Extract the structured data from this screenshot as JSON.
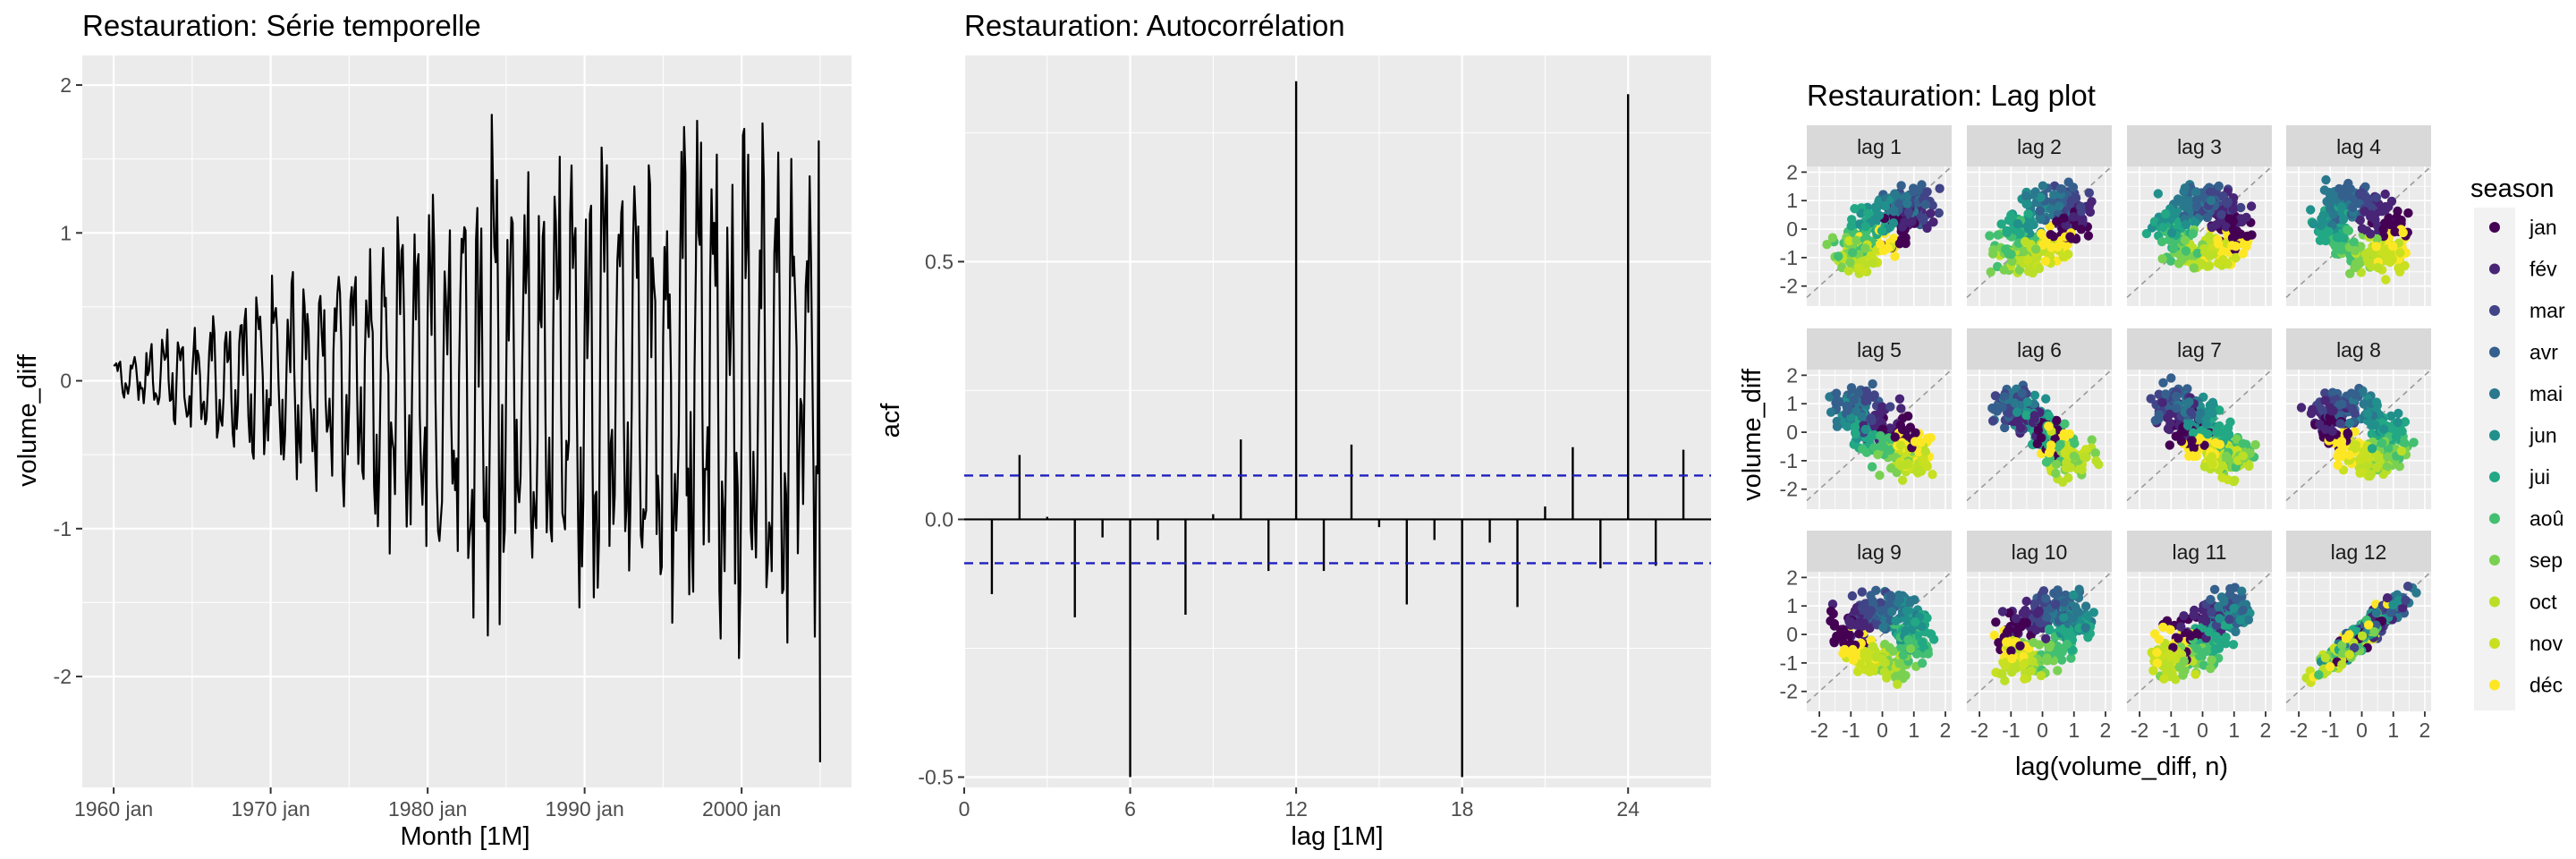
{
  "chart_data": [
    {
      "type": "line",
      "title": "Restauration: Série temporelle",
      "xlabel": "Month [1M]",
      "ylabel": "volume_diff",
      "x_ticks": [
        "1960 jan",
        "1970 jan",
        "1980 jan",
        "1990 jan",
        "2000 jan"
      ],
      "y_ticks": [
        "-2",
        "-1",
        "0",
        "1",
        "2"
      ],
      "xlim": [
        "1958 jan",
        "2007 jan"
      ],
      "ylim": [
        -2.75,
        2.2
      ],
      "x_start": "1960 jan",
      "x_end": "2005 jan",
      "frequency": "monthly",
      "series_summary": "Monthly differenced volume starting near 0, seasonal oscillation growing from about ±0.4 in the 1960s to about ±2 after 1980; maximum about 2.03 around 2001, final value about -2.58 in 2005.",
      "envelope_points": [
        {
          "x": "1960 jan",
          "max": 0.2,
          "min": -0.2
        },
        {
          "x": "1962 jan",
          "max": 0.25,
          "min": -0.15
        },
        {
          "x": "1964 jan",
          "max": 0.45,
          "min": -0.3
        },
        {
          "x": "1966 jan",
          "max": 0.5,
          "min": -0.45
        },
        {
          "x": "1968 jan",
          "max": 0.6,
          "min": -0.55
        },
        {
          "x": "1970 jan",
          "max": 0.9,
          "min": -0.5
        },
        {
          "x": "1972 jan",
          "max": 0.85,
          "min": -0.7
        },
        {
          "x": "1974 jan",
          "max": 1.0,
          "min": -0.8
        },
        {
          "x": "1976 jan",
          "max": 1.05,
          "min": -0.95
        },
        {
          "x": "1978 jan",
          "max": 1.1,
          "min": -1.3
        },
        {
          "x": "1980 jan",
          "max": 1.25,
          "min": -1.6
        },
        {
          "x": "1982 jan",
          "max": 1.3,
          "min": -1.35
        },
        {
          "x": "1984 jan",
          "max": 1.92,
          "min": -1.9
        },
        {
          "x": "1986 jan",
          "max": 1.55,
          "min": -1.3
        },
        {
          "x": "1988 jan",
          "max": 1.7,
          "min": -1.45
        },
        {
          "x": "1990 jan",
          "max": 1.55,
          "min": -1.55
        },
        {
          "x": "1992 jan",
          "max": 1.6,
          "min": -1.85
        },
        {
          "x": "1994 jan",
          "max": 1.75,
          "min": -1.6
        },
        {
          "x": "1996 jan",
          "max": 1.7,
          "min": -2.05
        },
        {
          "x": "1998 jan",
          "max": 1.8,
          "min": -2.1
        },
        {
          "x": "2000 jan",
          "max": 1.75,
          "min": -2.3
        },
        {
          "x": "2001 jan",
          "max": 2.03,
          "min": -1.7
        },
        {
          "x": "2002 jan",
          "max": 1.7,
          "min": -2.0
        },
        {
          "x": "2003 jan",
          "max": 1.9,
          "min": -1.75
        },
        {
          "x": "2004 jan",
          "max": 1.65,
          "min": -0.75
        },
        {
          "x": "2005 jan",
          "max": 1.62,
          "min": -2.58
        }
      ]
    },
    {
      "type": "bar",
      "title": "Restauration: Autocorrélation",
      "xlabel": "lag [1M]",
      "ylabel": "acf",
      "x_ticks": [
        "0",
        "6",
        "12",
        "18",
        "24"
      ],
      "y_ticks": [
        "-0.5",
        "0.0",
        "0.5"
      ],
      "xlim": [
        0,
        27
      ],
      "ylim": [
        -0.52,
        0.9
      ],
      "lags": [
        1,
        2,
        3,
        4,
        5,
        6,
        7,
        8,
        9,
        10,
        11,
        12,
        13,
        14,
        15,
        16,
        17,
        18,
        19,
        20,
        21,
        22,
        23,
        24,
        25,
        26
      ],
      "values": [
        -0.145,
        0.125,
        0.005,
        -0.19,
        -0.035,
        -0.5,
        -0.04,
        -0.185,
        0.01,
        0.155,
        -0.1,
        0.85,
        -0.1,
        0.145,
        -0.015,
        -0.165,
        -0.04,
        -0.5,
        -0.045,
        -0.17,
        0.025,
        0.14,
        -0.095,
        0.825,
        -0.09,
        0.135
      ],
      "confidence_bound": 0.085
    },
    {
      "type": "scatter",
      "title": "Restauration: Lag plot",
      "xlabel": "lag(volume_diff, n)",
      "ylabel": "volume_diff",
      "facets": [
        "lag 1",
        "lag 2",
        "lag 3",
        "lag 4",
        "lag 5",
        "lag 6",
        "lag 7",
        "lag 8",
        "lag 9",
        "lag 10",
        "lag 11",
        "lag 12"
      ],
      "x_ticks": [
        "-2",
        "-1",
        "0",
        "1",
        "2"
      ],
      "y_ticks": [
        "-2",
        "-1",
        "0",
        "1",
        "2"
      ],
      "xlim": [
        -2.4,
        2.2
      ],
      "ylim": [
        -2.7,
        2.2
      ],
      "legend_title": "season",
      "legend_position": "right",
      "legend": [
        {
          "label": "jan",
          "color": "#440154"
        },
        {
          "label": "fév",
          "color": "#482576"
        },
        {
          "label": "mar",
          "color": "#414487"
        },
        {
          "label": "avr",
          "color": "#35608D"
        },
        {
          "label": "mai",
          "color": "#2A788E"
        },
        {
          "label": "jun",
          "color": "#21908C"
        },
        {
          "label": "jui",
          "color": "#22A884"
        },
        {
          "label": "aoû",
          "color": "#43BF71"
        },
        {
          "label": "sep",
          "color": "#7AD151"
        },
        {
          "label": "oct",
          "color": "#BBDF27"
        },
        {
          "label": "nov",
          "color": "#C8E020"
        },
        {
          "label": "déc",
          "color": "#FDE725"
        }
      ],
      "diagonal": "dashed reference line y = x"
    }
  ]
}
